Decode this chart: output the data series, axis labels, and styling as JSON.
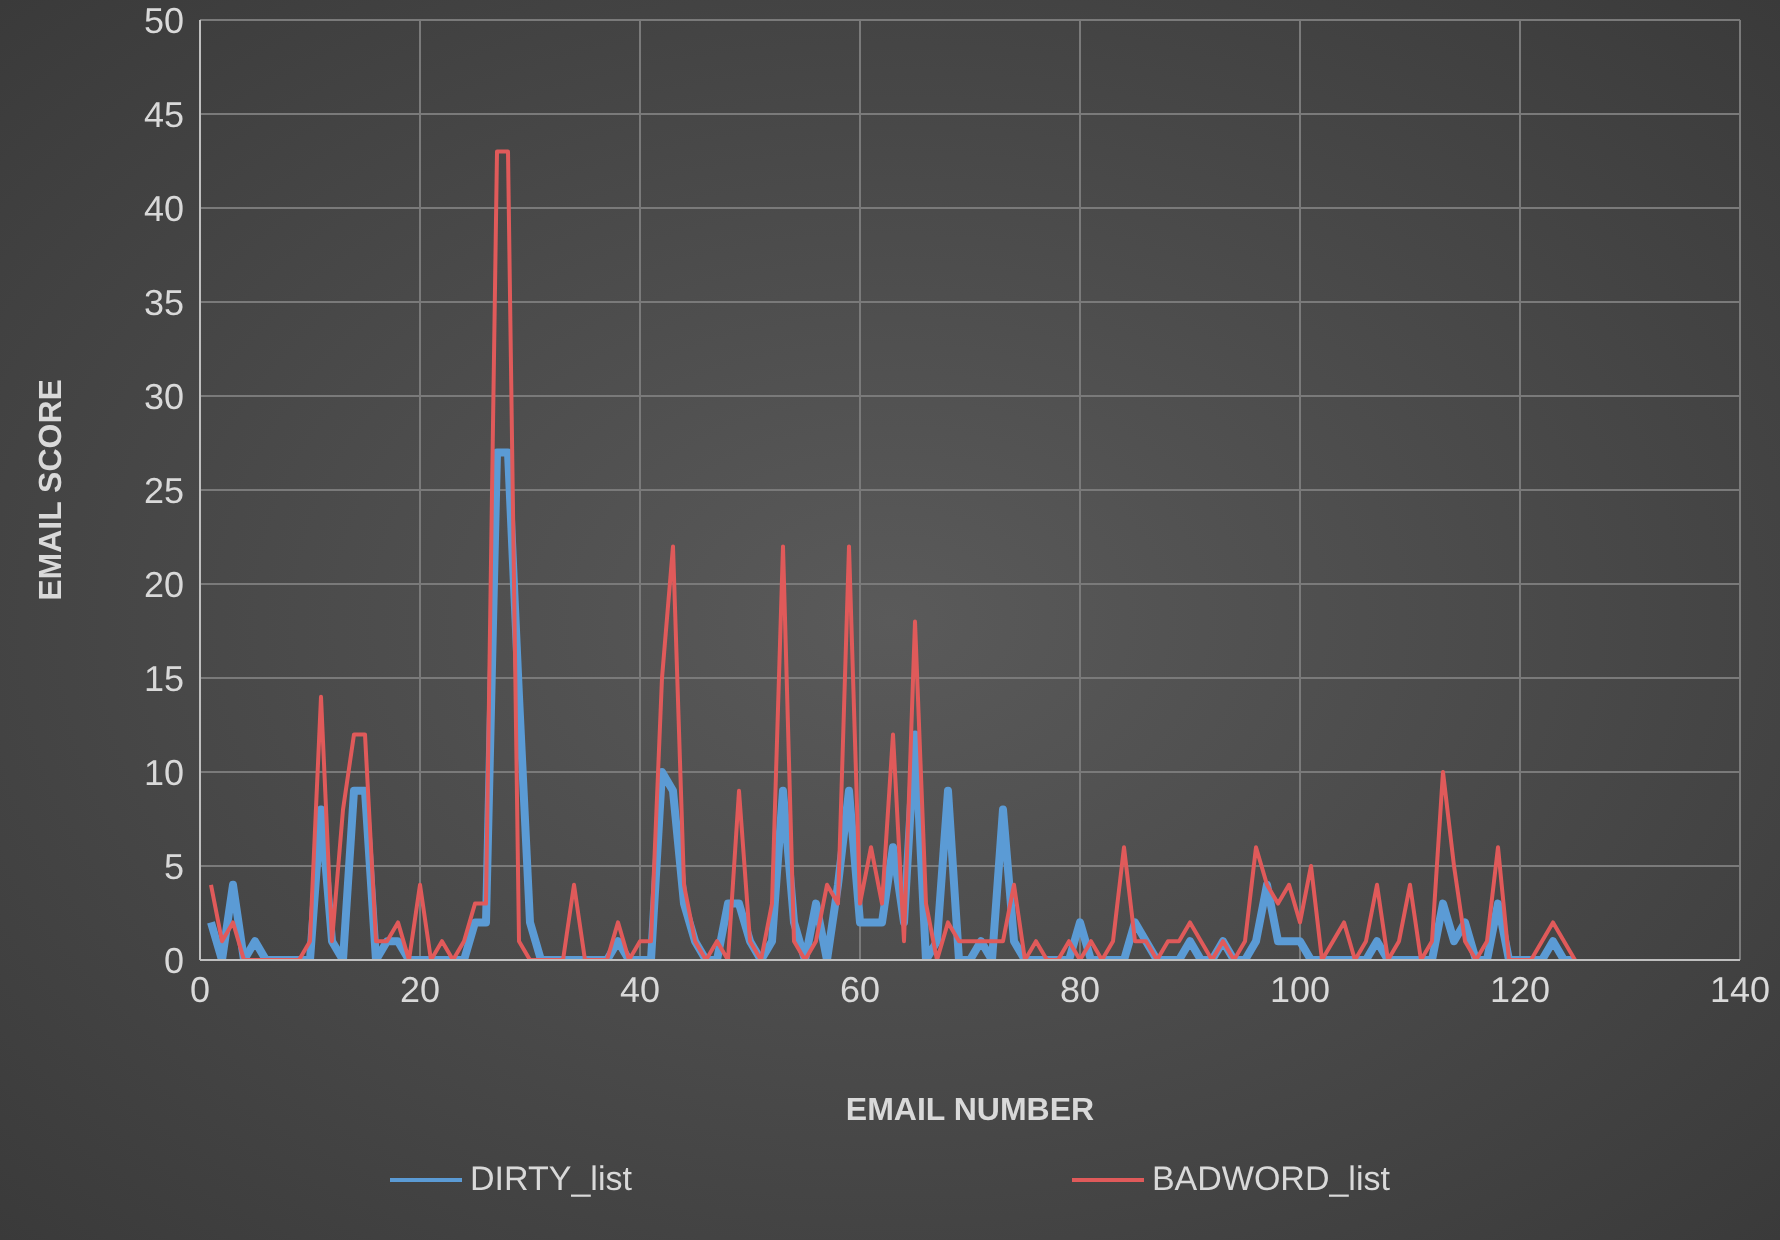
{
  "chart_data": {
    "type": "line",
    "xlabel": "EMAIL NUMBER",
    "ylabel": "EMAIL SCORE",
    "x": [
      1,
      2,
      3,
      4,
      5,
      6,
      7,
      8,
      9,
      10,
      11,
      12,
      13,
      14,
      15,
      16,
      17,
      18,
      19,
      20,
      21,
      22,
      23,
      24,
      25,
      26,
      27,
      28,
      29,
      30,
      31,
      32,
      33,
      34,
      35,
      36,
      37,
      38,
      39,
      40,
      41,
      42,
      43,
      44,
      45,
      46,
      47,
      48,
      49,
      50,
      51,
      52,
      53,
      54,
      55,
      56,
      57,
      58,
      59,
      60,
      61,
      62,
      63,
      64,
      65,
      66,
      67,
      68,
      69,
      70,
      71,
      72,
      73,
      74,
      75,
      76,
      77,
      78,
      79,
      80,
      81,
      82,
      83,
      84,
      85,
      86,
      87,
      88,
      89,
      90,
      91,
      92,
      93,
      94,
      95,
      96,
      97,
      98,
      99,
      100,
      101,
      102,
      103,
      104,
      105,
      106,
      107,
      108,
      109,
      110,
      111,
      112,
      113,
      114,
      115,
      116,
      117,
      118,
      119,
      120,
      121,
      122,
      123,
      124,
      125
    ],
    "series": [
      {
        "name": "DIRTY_list",
        "color": "#5b9bd5",
        "values": [
          2,
          0,
          4,
          0,
          1,
          0,
          0,
          0,
          0,
          0,
          8,
          1,
          0,
          9,
          9,
          0,
          1,
          1,
          0,
          0,
          0,
          0,
          0,
          0,
          2,
          2,
          27,
          27,
          14,
          2,
          0,
          0,
          0,
          0,
          0,
          0,
          0,
          1,
          0,
          0,
          0,
          10,
          9,
          3,
          1,
          0,
          0,
          3,
          3,
          1,
          0,
          1,
          9,
          2,
          0,
          3,
          0,
          4,
          9,
          2,
          2,
          2,
          6,
          2,
          12,
          0,
          1,
          9,
          0,
          0,
          1,
          0,
          8,
          1,
          0,
          0,
          0,
          0,
          0,
          2,
          0,
          0,
          0,
          0,
          2,
          1,
          0,
          0,
          0,
          1,
          0,
          0,
          1,
          0,
          0,
          1,
          4,
          1,
          1,
          1,
          0,
          0,
          0,
          0,
          0,
          0,
          1,
          0,
          0,
          0,
          0,
          0,
          3,
          1,
          2,
          0,
          0,
          3,
          0,
          0,
          0,
          0,
          1,
          0,
          0
        ]
      },
      {
        "name": "BADWORD_list",
        "color": "#e05a5a",
        "values": [
          4,
          1,
          2,
          0,
          0,
          0,
          0,
          0,
          0,
          1,
          14,
          1,
          8,
          12,
          12,
          1,
          1,
          2,
          0,
          4,
          0,
          1,
          0,
          1,
          3,
          3,
          43,
          43,
          1,
          0,
          0,
          0,
          0,
          4,
          0,
          0,
          0,
          2,
          0,
          1,
          1,
          15,
          22,
          4,
          1,
          0,
          1,
          0,
          9,
          1,
          0,
          3,
          22,
          1,
          0,
          1,
          4,
          3,
          22,
          3,
          6,
          3,
          12,
          1,
          18,
          3,
          0,
          2,
          1,
          1,
          1,
          1,
          1,
          4,
          0,
          1,
          0,
          0,
          1,
          0,
          1,
          0,
          1,
          6,
          1,
          1,
          0,
          1,
          1,
          2,
          1,
          0,
          1,
          0,
          1,
          6,
          4,
          3,
          4,
          2,
          5,
          0,
          1,
          2,
          0,
          1,
          4,
          0,
          1,
          4,
          0,
          1,
          10,
          5,
          1,
          0,
          1,
          6,
          0,
          0,
          0,
          1,
          2,
          1,
          0
        ]
      }
    ],
    "xlim": [
      0,
      140
    ],
    "xticks": [
      0,
      20,
      40,
      60,
      80,
      100,
      120,
      140
    ],
    "ylim": [
      0,
      50
    ],
    "yticks": [
      0,
      5,
      10,
      15,
      20,
      25,
      30,
      35,
      40,
      45,
      50
    ],
    "grid": true,
    "legend": "bottom",
    "marker": "none",
    "line_style": "solid"
  }
}
